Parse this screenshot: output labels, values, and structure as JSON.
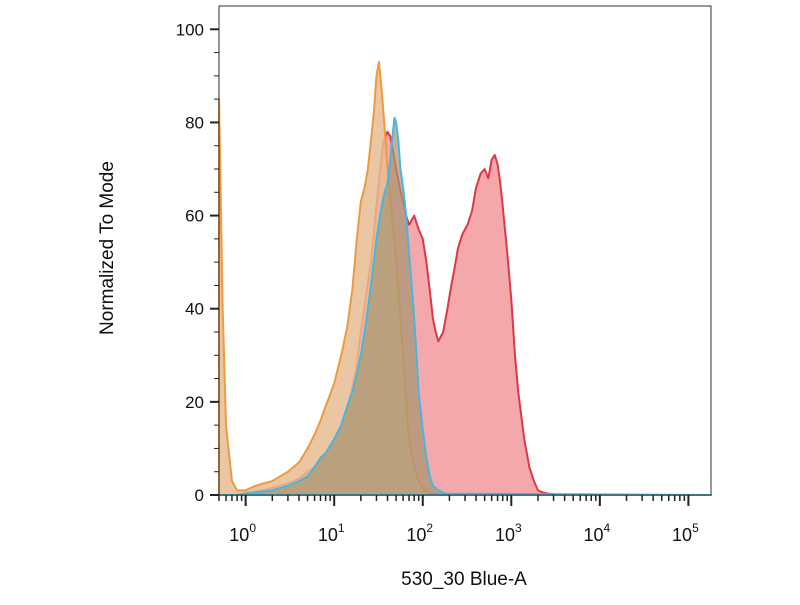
{
  "chart_data": {
    "type": "area",
    "title": "",
    "xlabel": "530_30 Blue-A",
    "ylabel": "Normalized To Mode",
    "x_scale": "log",
    "xlim": [
      0.5,
      180000
    ],
    "ylim": [
      0,
      105
    ],
    "x_ticks": [
      {
        "value": 1,
        "base": "10",
        "exp": "0"
      },
      {
        "value": 10,
        "base": "10",
        "exp": "1"
      },
      {
        "value": 100,
        "base": "10",
        "exp": "2"
      },
      {
        "value": 1000,
        "base": "10",
        "exp": "3"
      },
      {
        "value": 10000,
        "base": "10",
        "exp": "4"
      },
      {
        "value": 100000,
        "base": "10",
        "exp": "5"
      }
    ],
    "y_ticks": [
      0,
      20,
      40,
      60,
      80,
      100
    ],
    "y_tick_labels": [
      "0",
      "20",
      "40",
      "60",
      "80",
      "100"
    ],
    "grid": false,
    "legend": "none",
    "series": [
      {
        "fill": "#f3a3a8",
        "stroke": "#d93a48",
        "fill_opacity": 0.95,
        "x": [
          0.5,
          0.8,
          1,
          1.5,
          2,
          3,
          4,
          5,
          6,
          7,
          8,
          10,
          12,
          14,
          16,
          18,
          20,
          23,
          26,
          28,
          30,
          33,
          36,
          40,
          43,
          46,
          50,
          55,
          60,
          65,
          70,
          80,
          90,
          100,
          110,
          120,
          130,
          140,
          150,
          170,
          190,
          210,
          230,
          250,
          280,
          320,
          360,
          400,
          450,
          500,
          550,
          600,
          650,
          700,
          750,
          800,
          900,
          1000,
          1100,
          1200,
          1400,
          1600,
          1800,
          2000,
          2300,
          2600,
          3000,
          3500,
          5000,
          180000
        ],
        "y": [
          0,
          0,
          0.5,
          1,
          1.5,
          2.5,
          3.5,
          5,
          6,
          7.5,
          9,
          12,
          15,
          19,
          23,
          28,
          35,
          43,
          50,
          56,
          62,
          70,
          76,
          78,
          77,
          74,
          70,
          66,
          63,
          60,
          58,
          60,
          57,
          55,
          50,
          44,
          38,
          35,
          33,
          35,
          40,
          45,
          49,
          53,
          56,
          58,
          61,
          66,
          69,
          70,
          68,
          72,
          73,
          71,
          67,
          62,
          52,
          42,
          30,
          22,
          12,
          6,
          3,
          1,
          0.5,
          0.3,
          0.2,
          0,
          0,
          0
        ]
      },
      {
        "fill": "#e8bc92",
        "stroke": "#ee9a40",
        "fill_opacity": 0.85,
        "x": [
          0.5,
          0.55,
          0.6,
          0.7,
          0.8,
          1,
          1.3,
          1.6,
          2,
          3,
          4,
          5,
          6,
          7,
          8,
          10,
          12,
          14,
          16,
          18,
          20,
          22,
          24,
          26,
          28,
          30,
          32,
          34,
          36,
          38,
          40,
          42,
          45,
          50,
          55,
          60,
          65,
          70,
          80,
          90,
          100,
          110,
          130,
          160,
          200,
          180000
        ],
        "y": [
          85,
          40,
          15,
          3,
          1,
          1,
          2,
          2.5,
          3,
          5,
          7,
          10,
          13,
          16,
          19,
          24,
          30,
          36,
          44,
          55,
          63,
          66,
          70,
          76,
          82,
          90,
          93,
          88,
          82,
          76,
          70,
          66,
          60,
          50,
          40,
          30,
          20,
          12,
          6,
          3,
          1.5,
          0.8,
          0.3,
          0.1,
          0,
          0
        ]
      },
      {
        "fill": "#a79673",
        "stroke": "#4ab6de",
        "fill_opacity": 0.72,
        "x": [
          0.5,
          0.8,
          1,
          2,
          3,
          4,
          5,
          6,
          7,
          8,
          10,
          12,
          14,
          16,
          18,
          20,
          22,
          24,
          26,
          28,
          30,
          33,
          36,
          40,
          43,
          46,
          48,
          50,
          53,
          56,
          60,
          65,
          70,
          75,
          80,
          85,
          90,
          100,
          110,
          120,
          130,
          150,
          180,
          180000
        ],
        "y": [
          0,
          0,
          0.3,
          1,
          2,
          3,
          4,
          6,
          8,
          9,
          12,
          15,
          19,
          22,
          26,
          30,
          35,
          40,
          45,
          50,
          55,
          60,
          64,
          67,
          72,
          78,
          81,
          80,
          76,
          70,
          66,
          60,
          52,
          45,
          38,
          30,
          22,
          14,
          8,
          4,
          2,
          1,
          0.3,
          0
        ]
      }
    ]
  }
}
